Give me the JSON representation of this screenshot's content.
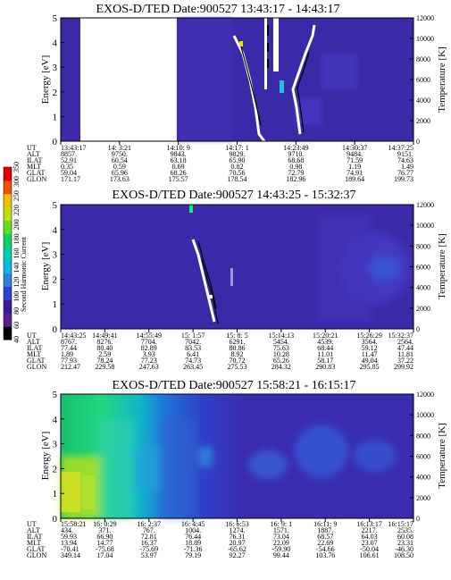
{
  "colorbar": {
    "label": "Second Harmonic Current",
    "ticks": [
      "40",
      "60",
      "80",
      "100",
      "120",
      "140",
      "160",
      "180",
      "200",
      "220",
      "250",
      "300",
      "350"
    ],
    "colors": [
      "#000000",
      "#5a2090",
      "#3a1aa0",
      "#2f3fd0",
      "#2f7fe0",
      "#10b8e8",
      "#00d0b0",
      "#10d060",
      "#60e020",
      "#c0e010",
      "#f0c000",
      "#f05000",
      "#e00000"
    ]
  },
  "chart_data": [
    {
      "type": "heatmap",
      "title": "EXOS-D/TED   Date:900527   13:43:17 - 14:43:17",
      "ylabel": "Energy [eV]",
      "y2label": "Temperature [K]",
      "ylim": [
        0,
        5
      ],
      "y2lim": [
        0,
        12000
      ],
      "yticks": [
        "0",
        "1",
        "2",
        "3",
        "4",
        "5"
      ],
      "y2ticks": [
        "0",
        "2000",
        "4000",
        "6000",
        "8000",
        "10000",
        "12000"
      ],
      "row_labels": [
        "UT",
        "ALT",
        "ILAT",
        "MLT",
        "GLAT",
        "GLON"
      ],
      "columns": [
        [
          "13:43:17",
          "8857.",
          "52.91",
          "0.35",
          "59.04",
          "171.17"
        ],
        [
          "14: 3:21",
          "9750.",
          "60.54",
          "0.59",
          "65.96",
          "173.63"
        ],
        [
          "14:10: 9",
          "9843.",
          "63.18",
          "0.69",
          "68.26",
          "175.57"
        ],
        [
          "14:17: 1",
          "9829.",
          "65.90",
          "0.82",
          "70.56",
          "178.54"
        ],
        [
          "14:23:49",
          "9710.",
          "68.68",
          "0.98",
          "72.79",
          "182.96"
        ],
        [
          "14:30:37",
          "9484.",
          "71.59",
          "1.19",
          "74.91",
          "189.64"
        ],
        [
          "14:37:25",
          "9151.",
          "74.63",
          "1.49",
          "76.77",
          "199.73"
        ]
      ]
    },
    {
      "type": "heatmap",
      "title": "EXOS-D/TED   Date:900527   14:43:25 - 15:32:37",
      "ylabel": "Energy [eV]",
      "y2label": "Temperature [K]",
      "ylim": [
        0,
        5
      ],
      "y2lim": [
        0,
        12000
      ],
      "yticks": [
        "0",
        "1",
        "2",
        "3",
        "4",
        "5"
      ],
      "y2ticks": [
        "0",
        "2000",
        "4000",
        "6000",
        "8000",
        "10000",
        "12000"
      ],
      "row_labels": [
        "UT",
        "ALT",
        "ILAT",
        "MLT",
        "GLAT",
        "GLON"
      ],
      "columns": [
        [
          "14:43:25",
          "8767.",
          "77.44",
          "1.89",
          "77.93",
          "212.47"
        ],
        [
          "14:49:41",
          "8276.",
          "80.40",
          "2.59",
          "78.24",
          "229.58"
        ],
        [
          "14:55:49",
          "7704.",
          "82.89",
          "3.93",
          "77.23",
          "247.63"
        ],
        [
          "15: 1:57",
          "7042.",
          "83.53",
          "6.41",
          "74.73",
          "263.45"
        ],
        [
          "15: 8: 5",
          "6291.",
          "80.86",
          "8.92",
          "70.72",
          "275.53"
        ],
        [
          "15:14:13",
          "5454.",
          "75.63",
          "10.28",
          "65.26",
          "284.32"
        ],
        [
          "15:20:21",
          "4539.",
          "68.44",
          "11.01",
          "58.17",
          "290.83"
        ],
        [
          "15:26:29",
          "3564.",
          "59.12",
          "11.47",
          "49.04",
          "295.85"
        ],
        [
          "15:32:37",
          "2564.",
          "47.44",
          "11.81",
          "37.22",
          "299.92"
        ]
      ]
    },
    {
      "type": "heatmap",
      "title": "EXOS-D/TED   Date:900527   15:58:21 - 16:15:17",
      "ylabel": "Energy [eV]",
      "y2label": "Temperature [K]",
      "ylim": [
        0,
        5
      ],
      "y2lim": [
        0,
        12000
      ],
      "yticks": [
        "0",
        "1",
        "2",
        "3",
        "4",
        "5"
      ],
      "y2ticks": [
        "0",
        "2000",
        "4000",
        "6000",
        "8000",
        "10000",
        "12000"
      ],
      "row_labels": [
        "UT",
        "ALT",
        "ILAT",
        "MLT",
        "GLAT",
        "GLON"
      ],
      "columns": [
        [
          "15:58:21",
          "434.",
          "59.93",
          "13.94",
          "-70.41",
          "349.14"
        ],
        [
          "16: 0:29",
          "371.",
          "66.90",
          "14.77",
          "-75.68",
          "17.04"
        ],
        [
          "16: 2:37",
          "767.",
          "72.81",
          "16.37",
          "-75.69",
          "53.97"
        ],
        [
          "16: 4:45",
          "1004.",
          "76.44",
          "18.89",
          "-71.36",
          "79.19"
        ],
        [
          "16: 6:53",
          "1274.",
          "76.31",
          "20.97",
          "-65.62",
          "92.27"
        ],
        [
          "16: 9: 1",
          "1571.",
          "73.04",
          "22.09",
          "-59.90",
          "99.44"
        ],
        [
          "16:11: 9",
          "1887.",
          "68.57",
          "22.69",
          "-54.66",
          "103.76"
        ],
        [
          "16:13:17",
          "2217.",
          "64.03",
          "23.07",
          "-50.04",
          "106.61"
        ],
        [
          "16:15:17",
          "2535.",
          "60.08",
          "23.31",
          "-46.30",
          "108.50"
        ]
      ]
    }
  ]
}
